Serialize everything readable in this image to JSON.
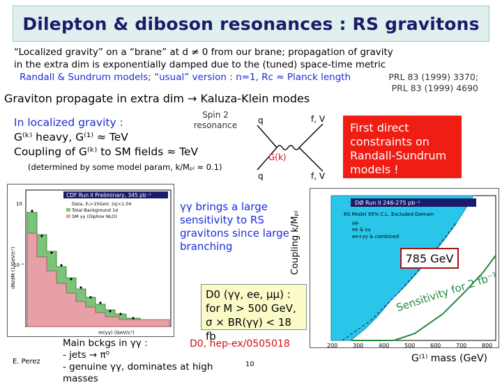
{
  "title": "Dilepton & diboson resonances : RS gravitons",
  "intro": {
    "line1": "“Localized gravity” on a “brane” at  d ≠ 0 from our brane; propagation of gravity",
    "line2": "in the extra dim is exponentially damped due to the (tuned) space-time metric",
    "line3": "Randall & Sundrum models; “usual” version : n=1, Rᴄ ≈ Planck length"
  },
  "refs": {
    "ref1": "PRL 83 (1999) 3370;",
    "ref2": "PRL 83 (1999) 4690"
  },
  "graviton_line": "Graviton propagate in extra dim → Kaluza-Klein modes",
  "localized": {
    "line1": "In localized gravity :",
    "line2": "G⁽ᵏ⁾ heavy, G⁽¹⁾ ≈ TeV",
    "line3": "Coupling of G⁽ᵏ⁾ to SM fields ≈ TeV",
    "note": "(determined by some model param, k/Mₚₗ ≈ 0.1)"
  },
  "diagram": {
    "spin": "Spin 2 resonance",
    "q_top": "q",
    "q_bottom": "q",
    "fv_top": "f, V",
    "fv_bottom": "f, V",
    "g": "G(k)"
  },
  "first_direct": "First direct constraints on Randall-Sundrum models !",
  "gg_text": "γγ brings a large sensitivity to RS gravitons since large branching",
  "coupling_label": "Coupling k/Mₚₗ",
  "cdf_plot": {
    "title": "CDF Run II Preliminary, 345 pb⁻¹",
    "legend": [
      "Data, Eₜ>15GeV, |η|<1.04",
      "Total Background 1σ",
      "SM γγ (Diphox NLO)"
    ],
    "ylabel": "dN/dM (1/GeV/c²)",
    "xlabel": "m(γγ) (GeV/c²)",
    "ytick_top": "10",
    "ytick_bottom": "10⁻¹"
  },
  "d0_plot": {
    "title": "DØ Run II 246-275 pb⁻¹",
    "subtitle": "RS Model 95% C.L. Excluded Domain",
    "leg1": "μμ",
    "leg2": "ee & γγ",
    "leg3": "ee+γγ & combined",
    "xticks": [
      "200",
      "300",
      "400",
      "500",
      "600",
      "700",
      "800"
    ],
    "mass_value": "785 GeV",
    "sensitivity": "Sensitivity for 2 fb⁻¹",
    "xaxis": "G⁽¹⁾ mass (GeV)"
  },
  "d0_box": "D0 (γγ, ee, μμ) : for M > 500 GeV, σ × BR(γγ) < 18 fb",
  "d0_ref": "D0, hep-ex/0505018",
  "bottom": {
    "line1": "Main bckgs in γγ :",
    "line2": "- jets → π⁰",
    "line3": "- genuine γγ, dominates at high masses"
  },
  "author": "E. Perez",
  "page_number": "10",
  "colors": {
    "red": "#ef1d14",
    "blue": "#1a2bd6",
    "green": "#1f8a3b"
  }
}
